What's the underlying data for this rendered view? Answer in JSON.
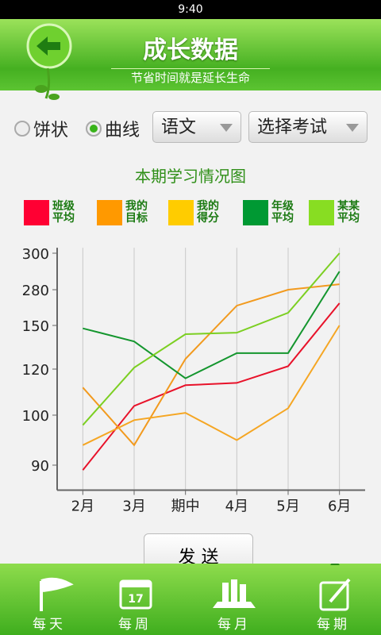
{
  "status_bar": {
    "time": "9:40"
  },
  "header": {
    "title": "成长数据",
    "subtitle": "节省时间就是延长生命"
  },
  "controls": {
    "radios": [
      {
        "label": "饼状",
        "checked": false
      },
      {
        "label": "曲线",
        "checked": true
      }
    ],
    "dropdowns": [
      "语文",
      "选择考试"
    ]
  },
  "chart_data": {
    "type": "line",
    "title": "本期学习情况图",
    "categories": [
      "2月",
      "3月",
      "期中",
      "4月",
      "5月",
      "6月"
    ],
    "series": [
      {
        "name": "班级平均",
        "color": "#e8122a",
        "values": [
          89,
          104,
          113,
          114,
          122,
          231
        ]
      },
      {
        "name": "我的目标",
        "color": "#f29a1e",
        "values": [
          112,
          94,
          127,
          222,
          280,
          283
        ]
      },
      {
        "name": "我的得分",
        "color": "#f5a623",
        "values": [
          94,
          99,
          101,
          95,
          103,
          150
        ]
      },
      {
        "name": "年级平均",
        "color": "#14962e",
        "values": [
          148,
          139,
          116,
          131,
          131,
          290
        ]
      },
      {
        "name": "某某平均",
        "color": "#7ccf22",
        "values": [
          98,
          121,
          144,
          145,
          196,
          300
        ]
      }
    ],
    "legend_colors": [
      "#ff0033",
      "#ff9900",
      "#ffcc00",
      "#009933",
      "#88dd22"
    ],
    "ylim": [
      85,
      303
    ],
    "yticks": [
      90,
      100,
      120,
      150,
      280,
      300
    ],
    "grid": true
  },
  "button": "发 送",
  "nav": {
    "calendar_day": "17",
    "items": [
      "每天",
      "每周",
      "每月",
      "每期"
    ]
  }
}
